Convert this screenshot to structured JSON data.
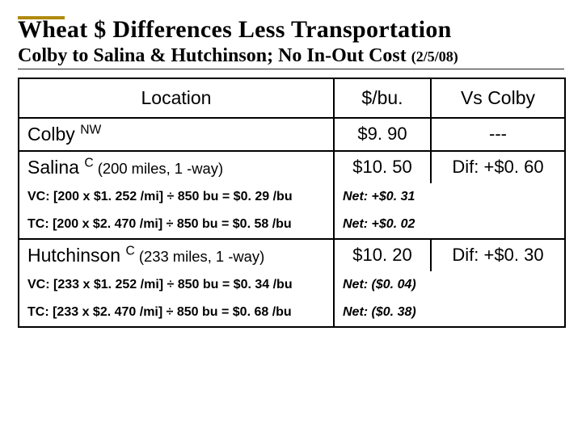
{
  "title": "Wheat $ Differences Less Transportation",
  "subtitle_main": "Colby to Salina & Hutchinson; No In-Out Cost ",
  "subtitle_date": "(2/5/08)",
  "headers": {
    "location": "Location",
    "perbu": "$/bu.",
    "vs": "Vs Colby"
  },
  "rows": {
    "colby": {
      "name": "Colby ",
      "sup": "NW",
      "perbu": "$9. 90",
      "vs": "---"
    },
    "salina": {
      "name": "Salina ",
      "sup": "C",
      "tail": " (200 miles, 1 -way)",
      "perbu": "$10. 50",
      "vs": "Dif: +$0. 60",
      "vc": "VC: [200 x $1. 252 /mi] ÷ 850 bu = $0. 29 /bu",
      "vc_net": "Net: +$0. 31",
      "tc": "TC: [200 x $2. 470 /mi] ÷ 850 bu = $0. 58 /bu",
      "tc_net": "Net: +$0. 02"
    },
    "hutch": {
      "name": "Hutchinson ",
      "sup": "C",
      "tail": " (233 miles, 1 -way)",
      "perbu": "$10. 20",
      "vs": "Dif: +$0. 30",
      "vc": "VC: [233 x $1. 252 /mi] ÷ 850 bu = $0. 34 /bu",
      "vc_net": "Net: ($0. 04)",
      "tc": "TC: [233 x $2. 470 /mi] ÷ 850 bu = $0. 68 /bu",
      "tc_net": "Net: ($0. 38)"
    }
  }
}
